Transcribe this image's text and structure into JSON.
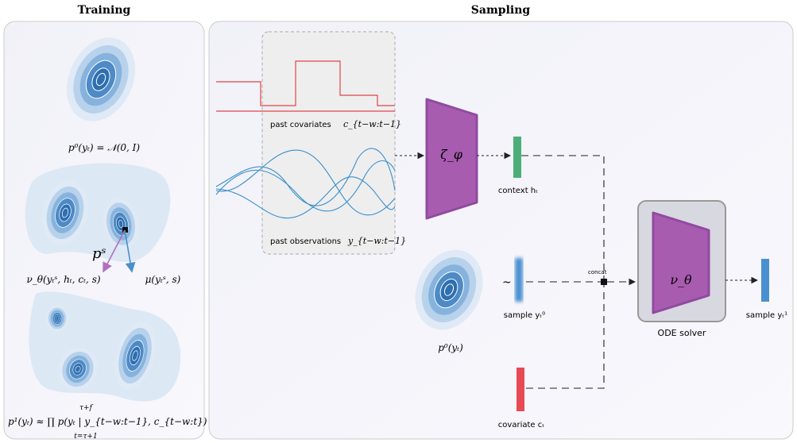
{
  "training": {
    "title": "Training",
    "prior": "p⁰(yₜ) = 𝒩(0, I)",
    "path": "pˢ",
    "velocity": "ν_θ(yₜˢ, hₜ, cₜ, s)",
    "target": "μ(yₜˢ, s)",
    "posterior": "p¹(yₜ) ≈ ∏ p(yₜ | y_{t−w:t−1}, c_{t−w:t})",
    "product_top": "τ+f",
    "product_bottom": "t=τ+1"
  },
  "sampling": {
    "title": "Sampling",
    "past_covariates": "past covariates",
    "past_covariates_symbol": "c_{t−w:t−1}",
    "past_observations": "past observations",
    "past_observations_symbol": "y_{t−w:t−1}",
    "encoder": "ζ_φ",
    "context": "context hₜ",
    "tilde": "~",
    "sample0": "sample yₜ⁰",
    "prior": "p⁰(yₜ)",
    "concat": "concat",
    "velocity": "ν_θ",
    "solver": "ODE solver",
    "sample1": "sample yₜ¹",
    "covariate": "covariate cₜ"
  }
}
